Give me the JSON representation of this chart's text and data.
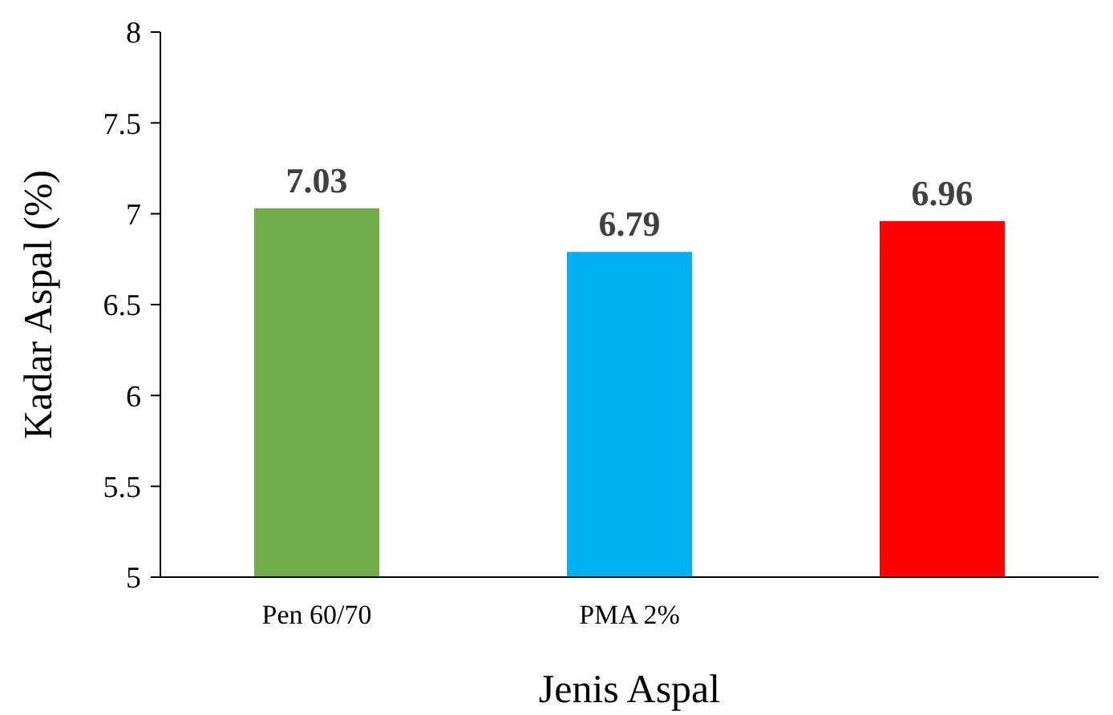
{
  "chart_data": {
    "type": "bar",
    "xlabel": "Jenis Aspal",
    "ylabel": "Kadar Aspal (%)",
    "categories": [
      "Pen 60/70",
      "PMA 2%",
      null
    ],
    "values": [
      7.03,
      6.79,
      6.96
    ],
    "colors": [
      "#70ad47",
      "#00b0f0",
      "#ff0000"
    ],
    "ylim": [
      5,
      8
    ],
    "yticks": [
      5,
      5.5,
      6,
      6.5,
      7,
      7.5,
      8
    ],
    "grid": false,
    "data_labels": true
  }
}
